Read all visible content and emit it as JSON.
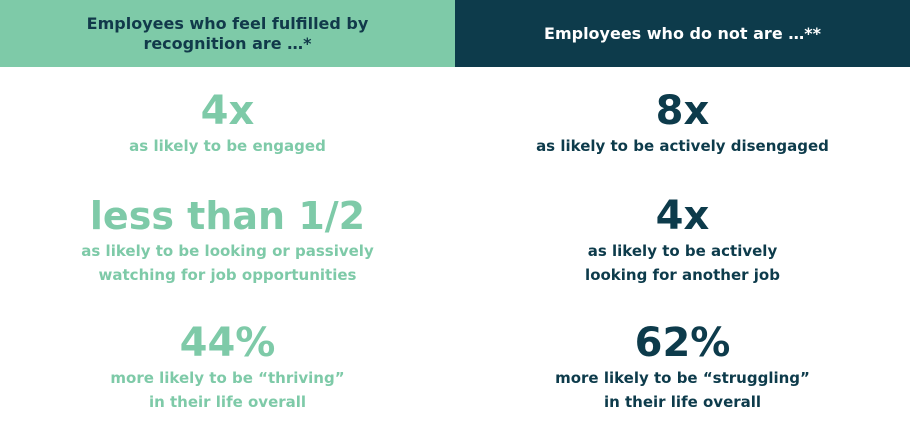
{
  "left": {
    "header": "Employees who feel fulfilled by recognition are …*",
    "stats": [
      {
        "value": "4x",
        "desc": "as likely to be engaged"
      },
      {
        "value": "less than 1/2",
        "desc": "as likely to be looking or passively\nwatching for job opportunities"
      },
      {
        "value": "44%",
        "desc": "more likely to be “thriving”\nin their life overall"
      }
    ]
  },
  "right": {
    "header": "Employees who do not are …**",
    "stats": [
      {
        "value": "8x",
        "desc": "as likely to be actively disengaged"
      },
      {
        "value": "4x",
        "desc": "as likely to be actively\nlooking for another job"
      },
      {
        "value": "62%",
        "desc": "more likely to be “struggling”\nin their life overall"
      }
    ]
  },
  "colors": {
    "accent_green": "#7ecaa8",
    "accent_navy": "#0d3b4b"
  }
}
